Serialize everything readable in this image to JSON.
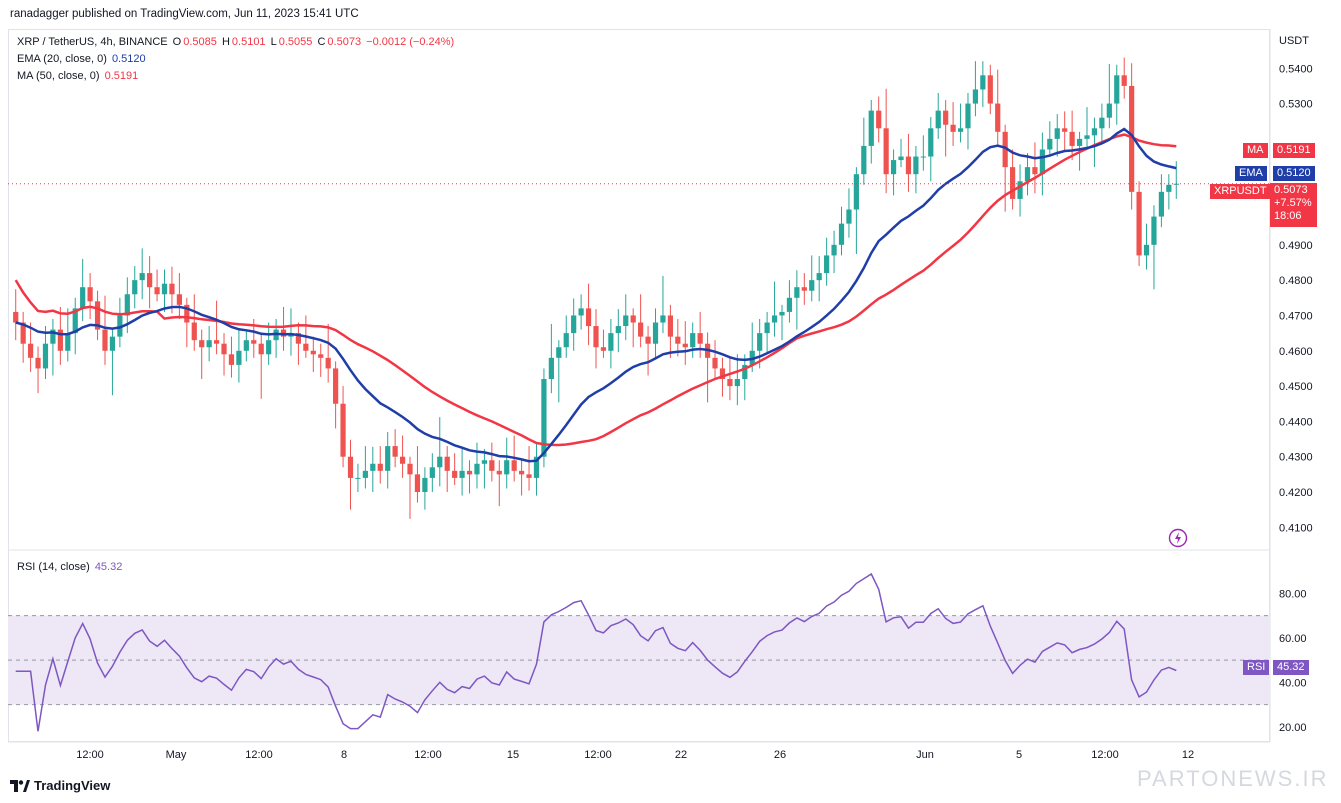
{
  "header": {
    "publisher_text": "ranadagger published on TradingView.com, Jun 11, 2023 15:41 UTC"
  },
  "legend": {
    "symbol": "XRP / TetherUS, 4h, BINANCE",
    "o_label": "O",
    "o_value": "0.5085",
    "h_label": "H",
    "h_value": "0.5101",
    "l_label": "L",
    "l_value": "0.5055",
    "c_label": "C",
    "c_value": "0.5073",
    "change": "−0.0012 (−0.24%)",
    "ema_label": "EMA (20, close, 0)",
    "ema_value": "0.5120",
    "ma_label": "MA (50, close, 0)",
    "ma_value": "0.5191",
    "rsi_label": "RSI (14, close)",
    "rsi_value": "45.32"
  },
  "price_axis": {
    "unit": "USDT",
    "ticks": [
      "0.5400",
      "0.5300",
      "0.5191",
      "0.5120",
      "0.5073",
      "0.4900",
      "0.4800",
      "0.4700",
      "0.4600",
      "0.4500",
      "0.4400",
      "0.4300",
      "0.4200",
      "0.4100"
    ]
  },
  "badges": {
    "ma_tag": "MA",
    "ma_value": "0.5191",
    "ema_tag": "EMA",
    "ema_value": "0.5120",
    "symbol_tag": "XRPUSDT",
    "price_value": "0.5073",
    "pct_value": "+7.57%",
    "countdown": "18:06",
    "rsi_tag": "RSI",
    "rsi_value": "45.32"
  },
  "rsi_axis": {
    "ticks": [
      "80.00",
      "60.00",
      "40.00",
      "20.00"
    ]
  },
  "time_axis": {
    "ticks": [
      "12:00",
      "May",
      "12:00",
      "8",
      "12:00",
      "15",
      "12:00",
      "22",
      "26",
      "Jun",
      "5",
      "12:00",
      "12"
    ]
  },
  "footer": {
    "brand": "TradingView",
    "watermark": "PARTONEWS.IR"
  },
  "colors": {
    "up": "#26a69a",
    "down": "#ef5350",
    "ema": "#1f3ea8",
    "ma": "#f23645",
    "rsi": "#7e57c2",
    "rsi_band": "#ede7f6"
  },
  "chart_data": {
    "type": "candlestick",
    "title": "XRP / TetherUS, 4h, BINANCE",
    "ylabel": "USDT",
    "ylim": [
      0.405,
      0.548
    ],
    "x_ticks": [
      "12:00",
      "May",
      "12:00",
      "8",
      "12:00",
      "15",
      "12:00",
      "22",
      "26",
      "Jun",
      "5",
      "12:00",
      "12"
    ],
    "grid": false,
    "close_series": [
      0.468,
      0.462,
      0.458,
      0.455,
      0.462,
      0.466,
      0.46,
      0.465,
      0.472,
      0.478,
      0.474,
      0.466,
      0.46,
      0.464,
      0.47,
      0.476,
      0.48,
      0.482,
      0.478,
      0.476,
      0.479,
      0.476,
      0.473,
      0.468,
      0.463,
      0.461,
      0.463,
      0.462,
      0.459,
      0.456,
      0.46,
      0.463,
      0.462,
      0.459,
      0.463,
      0.466,
      0.464,
      0.465,
      0.462,
      0.46,
      0.459,
      0.458,
      0.455,
      0.445,
      0.43,
      0.424,
      0.424,
      0.426,
      0.428,
      0.426,
      0.433,
      0.43,
      0.428,
      0.425,
      0.42,
      0.424,
      0.427,
      0.43,
      0.426,
      0.424,
      0.426,
      0.425,
      0.428,
      0.429,
      0.426,
      0.425,
      0.429,
      0.426,
      0.425,
      0.424,
      0.43,
      0.452,
      0.458,
      0.461,
      0.465,
      0.47,
      0.472,
      0.467,
      0.461,
      0.46,
      0.465,
      0.467,
      0.47,
      0.468,
      0.464,
      0.462,
      0.468,
      0.47,
      0.464,
      0.462,
      0.461,
      0.465,
      0.462,
      0.458,
      0.455,
      0.452,
      0.45,
      0.452,
      0.456,
      0.46,
      0.465,
      0.468,
      0.47,
      0.471,
      0.475,
      0.478,
      0.477,
      0.48,
      0.482,
      0.487,
      0.49,
      0.496,
      0.5,
      0.51,
      0.518,
      0.528,
      0.523,
      0.51,
      0.514,
      0.515,
      0.51,
      0.515,
      0.515,
      0.523,
      0.528,
      0.524,
      0.522,
      0.523,
      0.53,
      0.534,
      0.538,
      0.53,
      0.522,
      0.512,
      0.503,
      0.508,
      0.512,
      0.51,
      0.517,
      0.52,
      0.523,
      0.522,
      0.518,
      0.52,
      0.521,
      0.523,
      0.526,
      0.53,
      0.538,
      0.535,
      0.505,
      0.487,
      0.49,
      0.498,
      0.505,
      0.507,
      0.5073
    ],
    "ema20": {
      "name": "EMA (20, close, 0)",
      "last": 0.512
    },
    "ma50": {
      "name": "MA (50, close, 0)",
      "last": 0.5191
    },
    "rsi": {
      "name": "RSI (14, close)",
      "ylim": [
        15,
        95
      ],
      "levels": [
        70,
        50,
        30
      ],
      "last": 45.32
    }
  }
}
